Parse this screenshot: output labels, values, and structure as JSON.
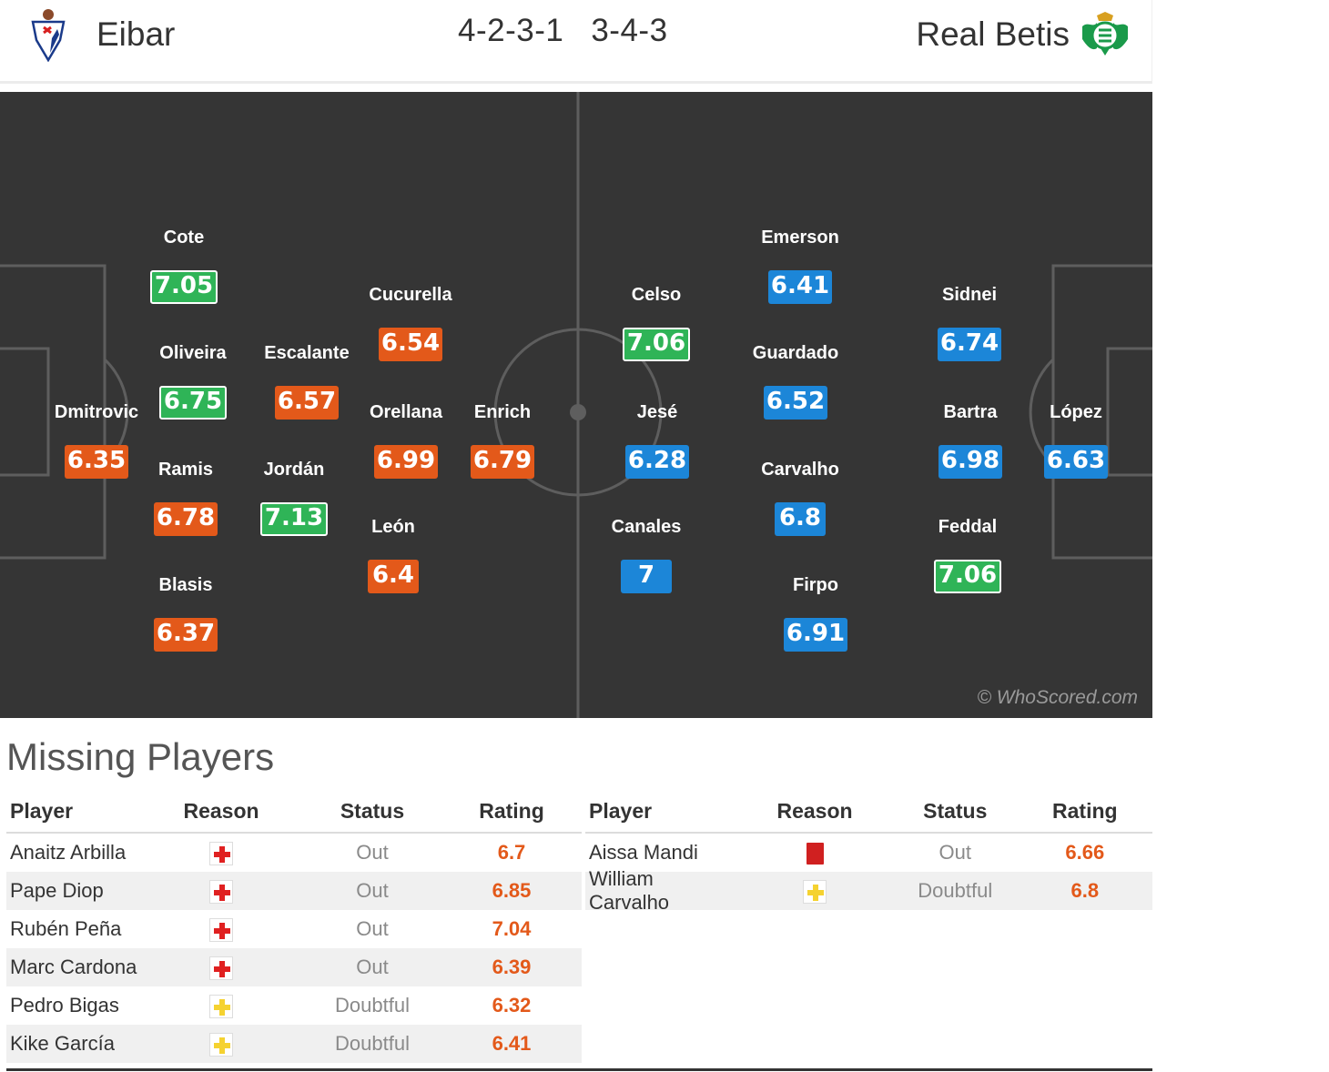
{
  "header": {
    "home_team": "Eibar",
    "away_team": "Real Betis",
    "home_formation": "4-2-3-1",
    "away_formation": "3-4-3"
  },
  "pitch": {
    "watermark": "© WhoScored.com",
    "home_players": [
      {
        "name": "Dmitrovic",
        "rating": "6.35",
        "color": "orange"
      },
      {
        "name": "Cote",
        "rating": "7.05",
        "color": "green"
      },
      {
        "name": "Oliveira",
        "rating": "6.75",
        "color": "green"
      },
      {
        "name": "Ramis",
        "rating": "6.78",
        "color": "orange"
      },
      {
        "name": "Blasis",
        "rating": "6.37",
        "color": "orange"
      },
      {
        "name": "Escalante",
        "rating": "6.57",
        "color": "orange"
      },
      {
        "name": "Jordán",
        "rating": "7.13",
        "color": "green"
      },
      {
        "name": "Cucurella",
        "rating": "6.54",
        "color": "orange"
      },
      {
        "name": "Orellana",
        "rating": "6.99",
        "color": "orange"
      },
      {
        "name": "León",
        "rating": "6.4",
        "color": "orange"
      },
      {
        "name": "Enrich",
        "rating": "6.79",
        "color": "orange"
      }
    ],
    "away_players": [
      {
        "name": "Celso",
        "rating": "7.06",
        "color": "green"
      },
      {
        "name": "Jesé",
        "rating": "6.28",
        "color": "blue"
      },
      {
        "name": "Canales",
        "rating": "7",
        "color": "blue"
      },
      {
        "name": "Emerson",
        "rating": "6.41",
        "color": "blue"
      },
      {
        "name": "Guardado",
        "rating": "6.52",
        "color": "blue"
      },
      {
        "name": "Carvalho",
        "rating": "6.8",
        "color": "blue"
      },
      {
        "name": "Firpo",
        "rating": "6.91",
        "color": "blue"
      },
      {
        "name": "Sidnei",
        "rating": "6.74",
        "color": "blue"
      },
      {
        "name": "Bartra",
        "rating": "6.98",
        "color": "blue"
      },
      {
        "name": "Feddal",
        "rating": "7.06",
        "color": "green"
      },
      {
        "name": "López",
        "rating": "6.63",
        "color": "blue"
      }
    ]
  },
  "missing": {
    "title": "Missing Players",
    "columns": {
      "player": "Player",
      "reason": "Reason",
      "status": "Status",
      "rating": "Rating"
    },
    "home": [
      {
        "player": "Anaitz Arbilla",
        "reason": "injury-icon",
        "status": "Out",
        "rating": "6.7"
      },
      {
        "player": "Pape Diop",
        "reason": "injury-icon",
        "status": "Out",
        "rating": "6.85"
      },
      {
        "player": "Rubén Peña",
        "reason": "injury-icon",
        "status": "Out",
        "rating": "7.04"
      },
      {
        "player": "Marc Cardona",
        "reason": "injury-icon",
        "status": "Out",
        "rating": "6.39"
      },
      {
        "player": "Pedro Bigas",
        "reason": "doubtful-icon",
        "status": "Doubtful",
        "rating": "6.32"
      },
      {
        "player": "Kike García",
        "reason": "doubtful-icon",
        "status": "Doubtful",
        "rating": "6.41"
      }
    ],
    "away": [
      {
        "player": "Aissa Mandi",
        "reason": "red-card-icon",
        "status": "Out",
        "rating": "6.66"
      },
      {
        "player": "William Carvalho",
        "reason": "doubtful-icon",
        "status": "Doubtful",
        "rating": "6.8"
      }
    ]
  },
  "colors": {
    "pitch": "#353535",
    "rating_orange": "#e3591a",
    "rating_green": "#2fb457",
    "rating_blue": "#1c86d8"
  }
}
